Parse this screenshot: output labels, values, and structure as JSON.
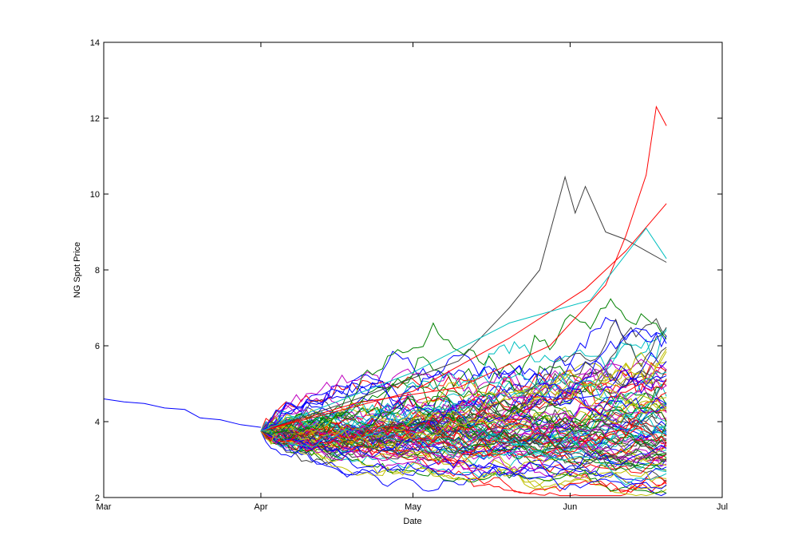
{
  "chart_data": {
    "type": "line",
    "title": "",
    "xlabel": "Date",
    "ylabel": "NG Spot Price",
    "xlim": [
      "Mar",
      "Jul"
    ],
    "ylim": [
      2,
      14
    ],
    "grid": false,
    "x_ticks": [
      "Mar",
      "Apr",
      "May",
      "Jun",
      "Jul"
    ],
    "y_ticks": [
      2,
      4,
      6,
      8,
      10,
      12,
      14
    ],
    "historical": {
      "color": "#0000ff",
      "points": [
        [
          "Mar 1",
          4.6
        ],
        [
          "Mar 5",
          4.52
        ],
        [
          "Mar 9",
          4.48
        ],
        [
          "Mar 13",
          4.36
        ],
        [
          "Mar 17",
          4.32
        ],
        [
          "Mar 20",
          4.1
        ],
        [
          "Mar 24",
          4.05
        ],
        [
          "Mar 28",
          3.92
        ],
        [
          "Apr 1",
          3.85
        ]
      ]
    },
    "simulation": {
      "path_count": 100,
      "start": [
        "Apr 1",
        3.75
      ],
      "end_date": "Jun 20",
      "colors": [
        "#0000ff",
        "#008000",
        "#ff0000",
        "#00bfbf",
        "#bf00bf",
        "#bfbf00",
        "#404040"
      ],
      "highlighted_paths": [
        {
          "color": "#404040",
          "points": [
            [
              "Apr 1",
              3.75
            ],
            [
              "Apr 20",
              4.6
            ],
            [
              "May 10",
              5.6
            ],
            [
              "May 20",
              7.0
            ],
            [
              "May 26",
              8.0
            ],
            [
              "May 31",
              10.45
            ],
            [
              "Jun 2",
              9.5
            ],
            [
              "Jun 4",
              10.2
            ],
            [
              "Jun 8",
              9.0
            ],
            [
              "Jun 12",
              8.8
            ],
            [
              "Jun 16",
              8.5
            ],
            [
              "Jun 20",
              8.2
            ]
          ]
        },
        {
          "color": "#ff0000",
          "points": [
            [
              "Apr 1",
              3.75
            ],
            [
              "Apr 20",
              4.5
            ],
            [
              "May 10",
              4.9
            ],
            [
              "May 28",
              6.0
            ],
            [
              "Jun 8",
              7.6
            ],
            [
              "Jun 12",
              8.9
            ],
            [
              "Jun 16",
              10.5
            ],
            [
              "Jun 18",
              12.3
            ],
            [
              "Jun 20",
              11.8
            ]
          ]
        },
        {
          "color": "#ff0000",
          "points": [
            [
              "Apr 1",
              3.75
            ],
            [
              "May 1",
              4.8
            ],
            [
              "May 20",
              6.2
            ],
            [
              "Jun 4",
              7.5
            ],
            [
              "Jun 12",
              8.5
            ],
            [
              "Jun 20",
              9.75
            ]
          ]
        },
        {
          "color": "#00bfbf",
          "points": [
            [
              "Apr 1",
              3.75
            ],
            [
              "May 1",
              5.3
            ],
            [
              "May 20",
              6.6
            ],
            [
              "Jun 5",
              7.2
            ],
            [
              "Jun 16",
              9.1
            ],
            [
              "Jun 20",
              8.3
            ]
          ]
        }
      ],
      "end_range": [
        2.3,
        11.8
      ]
    }
  }
}
